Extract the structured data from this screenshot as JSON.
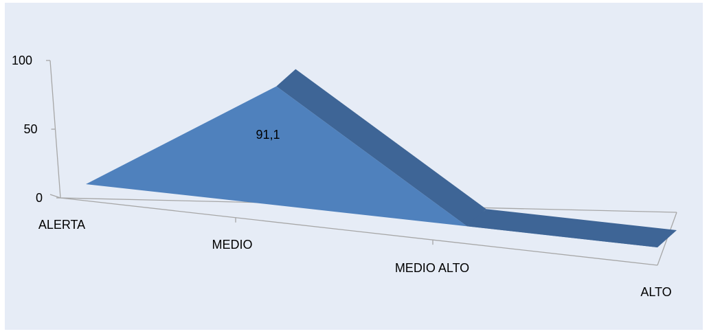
{
  "chart_data": {
    "type": "area",
    "style": "3d",
    "categories": [
      "ALERTA",
      "MEDIO",
      "MEDIO ALTO",
      "ALTO"
    ],
    "series": [
      {
        "values": [
          0,
          91.1,
          0,
          0
        ]
      }
    ],
    "data_labels": [
      {
        "category": "MEDIO",
        "text": "91,1"
      }
    ],
    "yticks": [
      "0",
      "50",
      "100"
    ],
    "ylim": [
      0,
      100
    ],
    "grid": false,
    "legend": "none",
    "colors": {
      "front": "#4f81bd",
      "side": "#3e6596",
      "background": "#e6ecf6",
      "axis": "#a6a6a6"
    }
  }
}
